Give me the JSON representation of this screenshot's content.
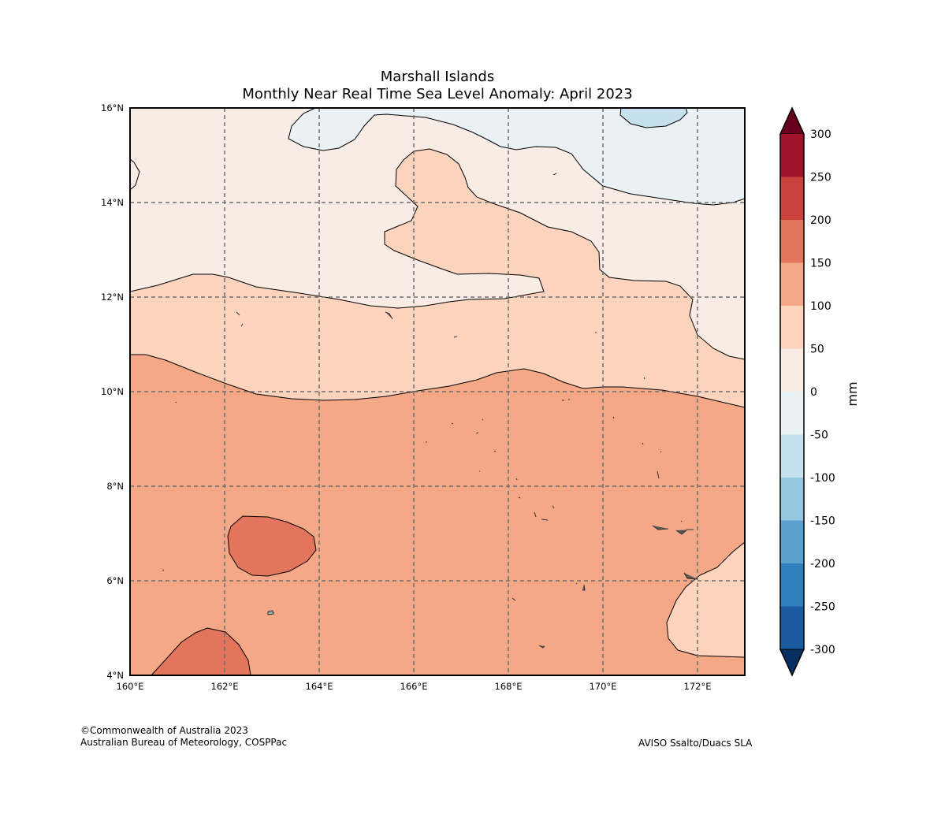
{
  "title": {
    "line1": "Marshall Islands",
    "line2": "Monthly Near Real Time Sea Level Anomaly: April 2023"
  },
  "map": {
    "lon_range": [
      160,
      173
    ],
    "lat_range": [
      4,
      16
    ],
    "x_ticks": [
      "160°E",
      "162°E",
      "164°E",
      "166°E",
      "168°E",
      "170°E",
      "172°E"
    ],
    "y_ticks": [
      "4°N",
      "6°N",
      "8°N",
      "10°N",
      "12°N",
      "14°N",
      "16°N"
    ],
    "gridlines": true
  },
  "colorbar": {
    "unit": "mm",
    "labels": [
      "300",
      "250",
      "200",
      "150",
      "100",
      "50",
      "0",
      "-50",
      "-100",
      "-150",
      "-200",
      "-250",
      "-300"
    ],
    "colors_top_to_bottom": [
      "#a1132a",
      "#c9403d",
      "#e2755c",
      "#f5a886",
      "#fcd3bc",
      "#f9ece4",
      "#e9f1f5",
      "#c6e0ed",
      "#94c6df",
      "#5ba2cf",
      "#3080bd",
      "#195b9e"
    ],
    "extend_high_color": "#67001f",
    "extend_low_color": "#053061"
  },
  "credits": {
    "line1": "©Commonwealth of Australia 2023",
    "line2": "Australian Bureau of Meteorology, COSPPac",
    "source": "AVISO Ssalto/Duacs SLA"
  }
}
